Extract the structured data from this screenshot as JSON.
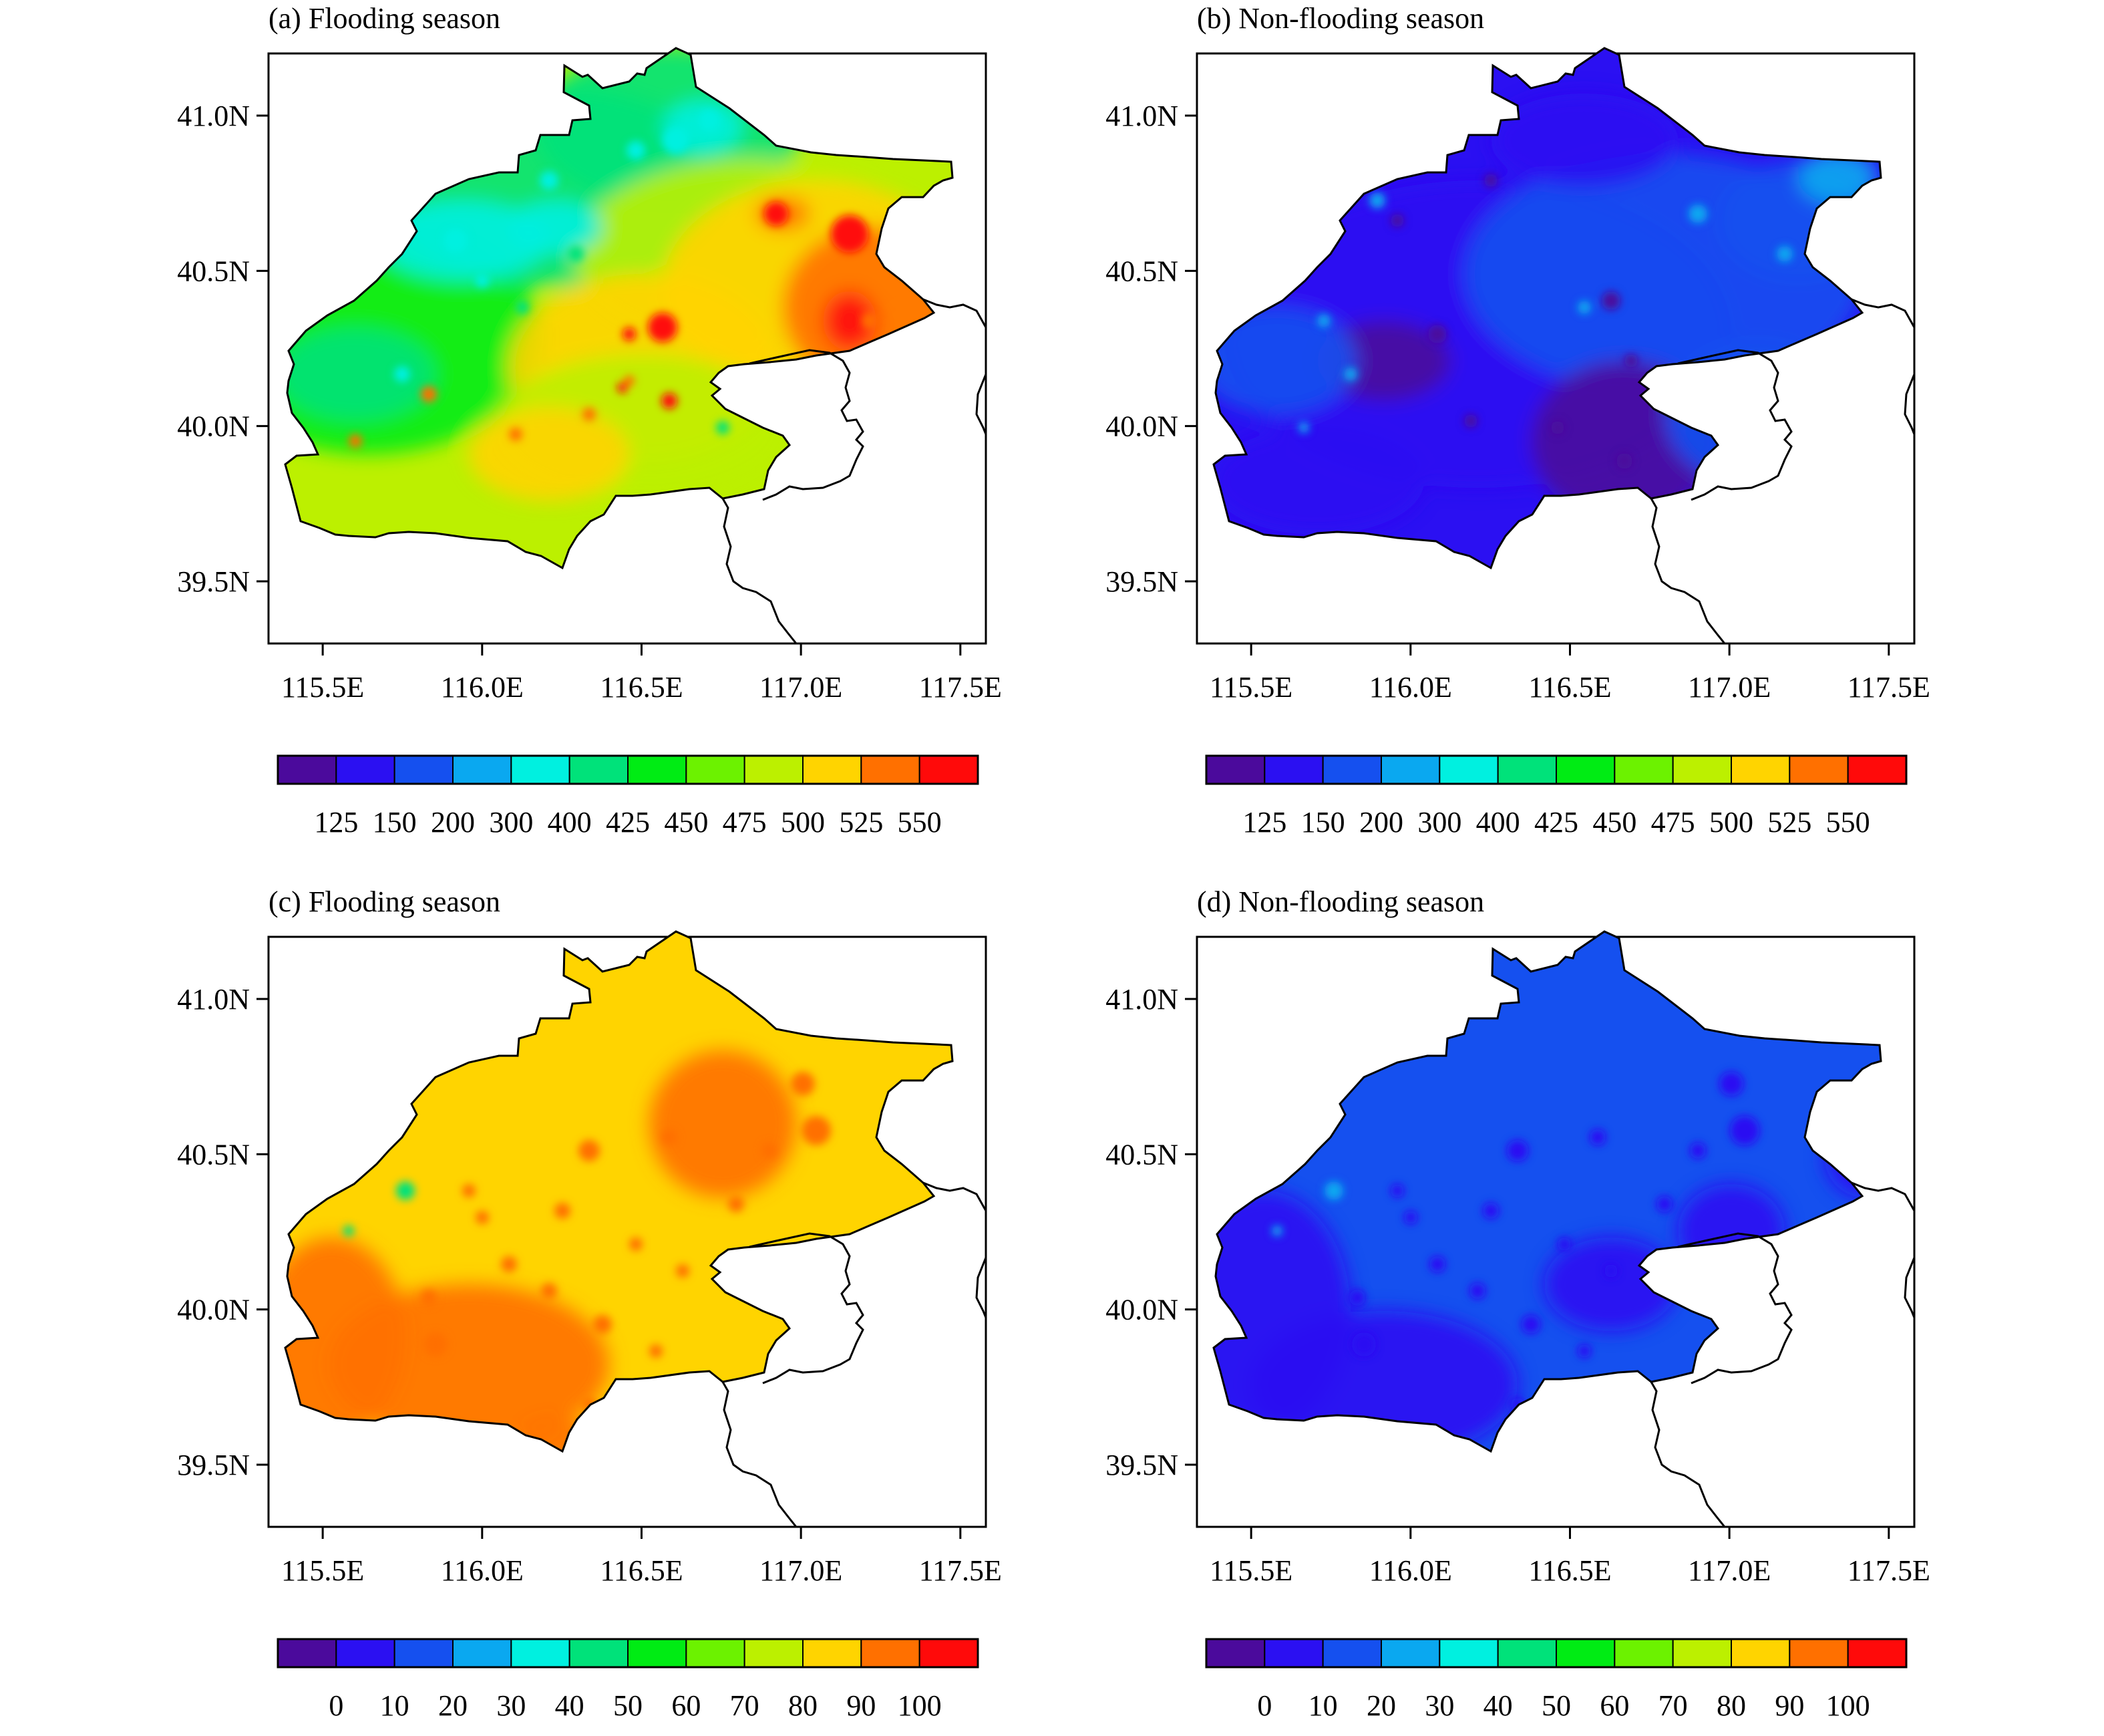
{
  "panels": [
    {
      "id": "a",
      "title": "(a) Flooding season",
      "variant": "a",
      "colorbar_labels": [
        "125",
        "150",
        "200",
        "300",
        "400",
        "425",
        "450",
        "475",
        "500",
        "525",
        "550"
      ]
    },
    {
      "id": "b",
      "title": "(b) Non-flooding season",
      "variant": "b",
      "colorbar_labels": [
        "125",
        "150",
        "200",
        "300",
        "400",
        "425",
        "450",
        "475",
        "500",
        "525",
        "550"
      ]
    },
    {
      "id": "c",
      "title": "(c) Flooding season",
      "variant": "c",
      "colorbar_labels": [
        "0",
        "10",
        "20",
        "30",
        "40",
        "50",
        "60",
        "70",
        "80",
        "90",
        "100"
      ]
    },
    {
      "id": "d",
      "title": "(d) Non-flooding season",
      "variant": "d",
      "colorbar_labels": [
        "0",
        "10",
        "20",
        "30",
        "40",
        "50",
        "60",
        "70",
        "80",
        "90",
        "100"
      ]
    }
  ],
  "axes": {
    "lon_range": [
      115.33,
      117.58
    ],
    "lat_range": [
      39.3,
      41.2
    ],
    "x_ticks": [
      {
        "value": 115.5,
        "label": "115.5E"
      },
      {
        "value": 116.0,
        "label": "116.0E"
      },
      {
        "value": 116.5,
        "label": "116.5E"
      },
      {
        "value": 117.0,
        "label": "117.0E"
      },
      {
        "value": 117.5,
        "label": "117.5E"
      }
    ],
    "y_ticks": [
      {
        "value": 41.0,
        "label": "41.0N"
      },
      {
        "value": 40.5,
        "label": "40.5N"
      },
      {
        "value": 40.0,
        "label": "40.0N"
      },
      {
        "value": 39.5,
        "label": "39.5N"
      }
    ]
  },
  "colormap": [
    "#4b0a9c",
    "#2b10f2",
    "#1550ef",
    "#0aa8f0",
    "#00f0e0",
    "#00e27a",
    "#00ec14",
    "#6cf200",
    "#bcf000",
    "#ffd400",
    "#ff7000",
    "#ff0a0a"
  ]
}
